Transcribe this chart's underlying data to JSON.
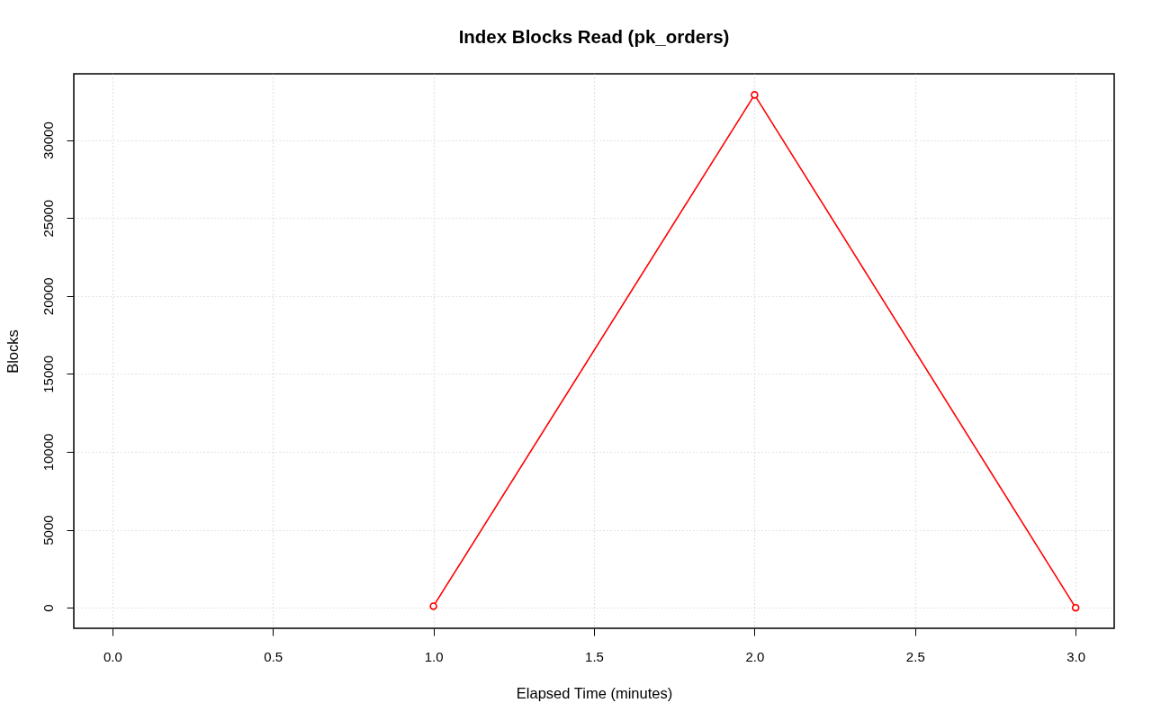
{
  "chart_data": {
    "type": "line",
    "title": "Index Blocks Read (pk_orders)",
    "xlabel": "Elapsed Time (minutes)",
    "ylabel": "Blocks",
    "x": [
      1,
      2,
      3
    ],
    "series": [
      {
        "color": "#ff0000",
        "values": [
          100,
          32900,
          0
        ]
      }
    ],
    "xlim": [
      -0.12,
      3.12
    ],
    "xticks": [
      {
        "value": 0,
        "label": "0.0"
      },
      0.5,
      {
        "value": 1,
        "label": "1.0"
      },
      1.5,
      {
        "value": 2,
        "label": "2.0"
      },
      2.5,
      {
        "value": 3,
        "label": "3.0"
      }
    ],
    "ylim": [
      -1320,
      34250
    ],
    "yticks": [
      0,
      5000,
      10000,
      15000,
      20000,
      25000,
      30000
    ],
    "grid": true,
    "marker": "circle",
    "line_style": "solid"
  }
}
